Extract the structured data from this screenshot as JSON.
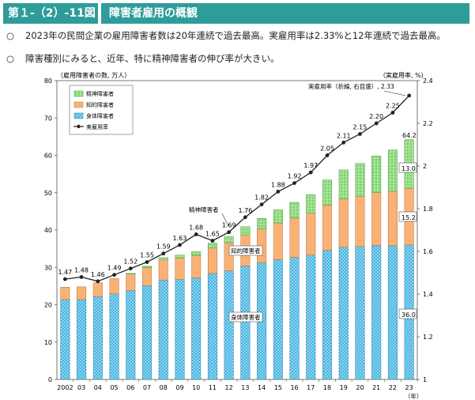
{
  "header": {
    "figure_label": "第１-（2）-11図",
    "title": "障害者雇用の概観"
  },
  "bullets": [
    {
      "mark": "○",
      "text": "2023年の民間企業の雇用障害者数は20年連続で過去最高。実雇用率は2.33%と12年連続で過去最高。"
    },
    {
      "mark": "○",
      "text": "障害種別にみると、近年、特に精神障害者の伸び率が大きい。"
    }
  ],
  "chart_data": {
    "type": "bar",
    "subtype": "stacked bar with line on secondary axis",
    "ylabel_left": "（雇用障害者の数, 万人）",
    "ylabel_right": "（実雇用率, %）",
    "xlabel": "（年）",
    "ylim_left": [
      0,
      80
    ],
    "yticks_left": [
      "0",
      "10",
      "20",
      "30",
      "40",
      "50",
      "60",
      "70",
      "80"
    ],
    "ylim_right": [
      1.0,
      2.4
    ],
    "yticks_right": [
      "1",
      "1.2",
      "1.4",
      "1.6",
      "1.8",
      "2",
      "2.2",
      "2.4"
    ],
    "categories": [
      "2002",
      "03",
      "04",
      "05",
      "06",
      "07",
      "08",
      "09",
      "10",
      "11",
      "12",
      "13",
      "14",
      "15",
      "16",
      "17",
      "18",
      "19",
      "20",
      "21",
      "22",
      "23"
    ],
    "legend": [
      "精神障害者",
      "知的障害者",
      "身体障害者",
      "実雇用率"
    ],
    "legend_position": "top-left",
    "series": [
      {
        "name": "身体障害者",
        "color": "#3ab0e0",
        "values": [
          21.4,
          21.4,
          22.2,
          22.9,
          23.8,
          25.1,
          26.6,
          26.8,
          27.2,
          28.4,
          29.1,
          30.4,
          31.3,
          32.1,
          32.7,
          33.3,
          34.6,
          35.4,
          35.6,
          35.9,
          35.8,
          36.0
        ]
      },
      {
        "name": "知的障害者",
        "color": "#f6a45e",
        "values": [
          3.3,
          3.4,
          3.7,
          4.1,
          4.4,
          4.8,
          5.4,
          5.7,
          6.0,
          6.8,
          7.5,
          8.3,
          9.0,
          9.8,
          10.5,
          11.2,
          12.1,
          12.9,
          13.4,
          14.1,
          14.6,
          15.2
        ]
      },
      {
        "name": "精神障害者",
        "color": "#7ed36b",
        "values": [
          0,
          0,
          0,
          0,
          0.2,
          0.4,
          0.6,
          0.8,
          1.0,
          1.3,
          1.7,
          2.2,
          2.8,
          3.5,
          4.2,
          5.0,
          6.7,
          7.8,
          8.8,
          9.8,
          11.0,
          13.0
        ]
      },
      {
        "name": "実雇用率",
        "color": "#222222",
        "axis": "right",
        "values": [
          1.47,
          1.48,
          1.46,
          1.49,
          1.52,
          1.55,
          1.59,
          1.63,
          1.68,
          1.65,
          1.69,
          1.76,
          1.82,
          1.88,
          1.92,
          1.97,
          2.05,
          2.11,
          2.15,
          2.2,
          2.25,
          2.33
        ]
      }
    ],
    "rate_labels": [
      "1.47",
      "1.48",
      "1.46",
      "1.49",
      "1.52",
      "1.55",
      "1.59",
      "1.63",
      "1.68",
      "1.65",
      "1.69",
      "1.76",
      "1.82",
      "1.88",
      "1.92",
      "1.97",
      "2.05",
      "2.11",
      "2.15",
      "2.20",
      "2.25"
    ],
    "annotations": {
      "rate_line": "実雇用率（折線, 右目盛）, 2.33",
      "mental": "精神障害者",
      "intellectual": "知的障害者",
      "physical": "身体障害者",
      "total_2023": "64.2",
      "mental_2023": "13.0",
      "intellectual_2023": "15.2",
      "physical_2023": "36.0"
    }
  }
}
